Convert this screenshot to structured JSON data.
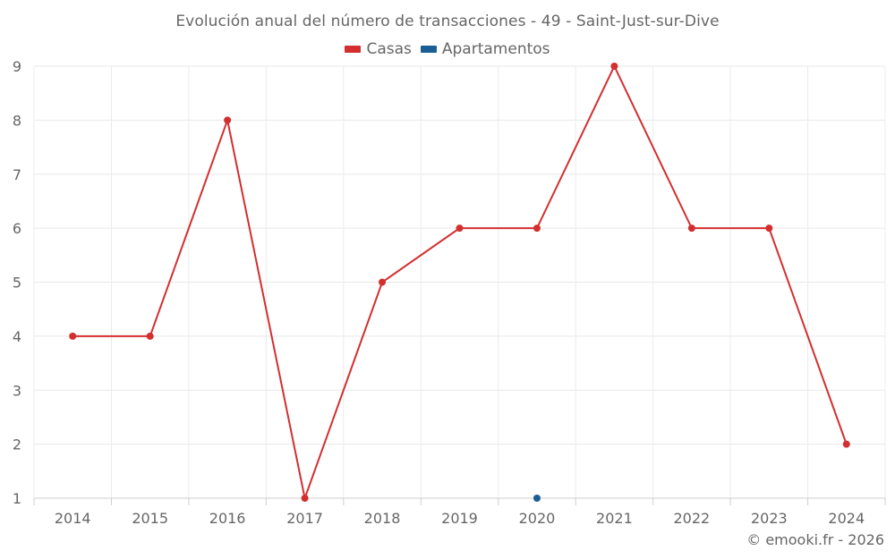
{
  "chart_data": {
    "type": "line",
    "title": "Evolución anual del número de transacciones - 49 - Saint-Just-sur-Dive",
    "categories": [
      "2014",
      "2015",
      "2016",
      "2017",
      "2018",
      "2019",
      "2020",
      "2021",
      "2022",
      "2023",
      "2024"
    ],
    "series": [
      {
        "name": "Casas",
        "color": "#d32f2f",
        "values": [
          4,
          4,
          8,
          1,
          5,
          6,
          6,
          9,
          6,
          6,
          2
        ]
      },
      {
        "name": "Apartamentos",
        "color": "#1a5e95",
        "values": [
          null,
          null,
          null,
          null,
          null,
          null,
          1,
          null,
          null,
          null,
          null
        ]
      }
    ],
    "ylim": [
      1,
      9
    ],
    "yticks": [
      1,
      2,
      3,
      4,
      5,
      6,
      7,
      8,
      9
    ],
    "xlabel": "",
    "ylabel": "",
    "grid": true,
    "legend_position": "top-center"
  },
  "credit": "© emooki.fr - 2026"
}
